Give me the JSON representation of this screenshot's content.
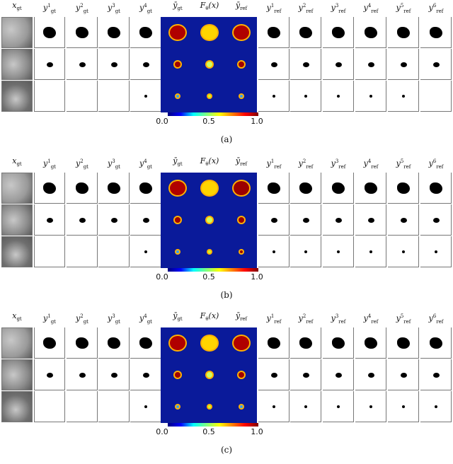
{
  "columns": [
    {
      "base": "x",
      "sub": "gt",
      "sup": ""
    },
    {
      "base": "y",
      "sub": "gt",
      "sup": "1"
    },
    {
      "base": "y",
      "sub": "gt",
      "sup": "2"
    },
    {
      "base": "y",
      "sub": "gt",
      "sup": "3"
    },
    {
      "base": "y",
      "sub": "gt",
      "sup": "4"
    },
    {
      "base": "ȳ",
      "sub": "gt",
      "sup": ""
    },
    {
      "base": "F",
      "sub": "θ",
      "sup": "",
      "suffix": "(x)"
    },
    {
      "base": "ȳ",
      "sub": "ref",
      "sup": ""
    },
    {
      "base": "y",
      "sub": "ref",
      "sup": "1"
    },
    {
      "base": "y",
      "sub": "ref",
      "sup": "2"
    },
    {
      "base": "y",
      "sub": "ref",
      "sup": "3"
    },
    {
      "base": "y",
      "sub": "ref",
      "sup": "4"
    },
    {
      "base": "y",
      "sub": "ref",
      "sup": "5"
    },
    {
      "base": "y",
      "sub": "ref",
      "sup": "6"
    }
  ],
  "colorbar": {
    "ticks": [
      "0.0",
      "0.5",
      "1.0"
    ],
    "colormap": "jet"
  },
  "panels": [
    {
      "caption": "(a)"
    },
    {
      "caption": "(b)"
    },
    {
      "caption": "(c)"
    }
  ]
}
